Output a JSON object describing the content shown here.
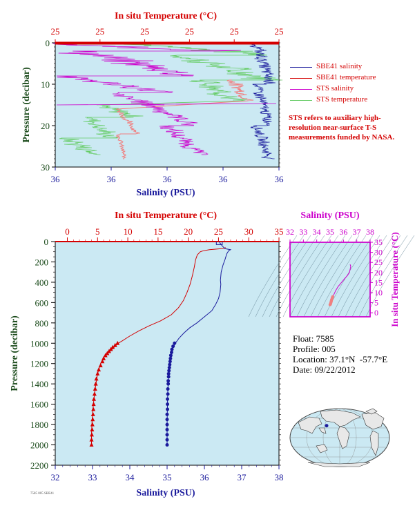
{
  "chart_data": [
    {
      "type": "line",
      "top_axis_label": "In situ Temperature (°C)",
      "top_tick_labels": [
        "25",
        "25",
        "25",
        "25",
        "25",
        "25"
      ],
      "xlabel": "Salinity (PSU)",
      "bottom_tick_labels": [
        "36",
        "36",
        "36",
        "36",
        "36"
      ],
      "ylabel": "Pressure (decibar)",
      "y_ticks": [
        0,
        10,
        20,
        30
      ],
      "ylim": [
        30,
        0
      ],
      "grid": false,
      "legend_position": "right",
      "series": [
        {
          "name": "SBE41 salinity",
          "color": "#1a1a9c"
        },
        {
          "name": "SBE41 temperature",
          "color": "#d40000"
        },
        {
          "name": "STS salinity",
          "color": "#cc00cc"
        },
        {
          "name": "STS temperature",
          "color": "#66cc66"
        }
      ],
      "note": "STS refers to auxiliary high-resolution near-surface T-S measurements funded by NASA."
    },
    {
      "type": "line",
      "top_axis_label": "In situ Temperature (°C)",
      "top_ticks": [
        0,
        5,
        10,
        15,
        20,
        25,
        30,
        35
      ],
      "xlabel": "Salinity (PSU)",
      "bottom_ticks": [
        32,
        33,
        34,
        35,
        36,
        37,
        38
      ],
      "ylabel": "Pressure (decibar)",
      "y_ticks": [
        0,
        200,
        400,
        600,
        800,
        1000,
        1200,
        1400,
        1600,
        1800,
        2000,
        2200
      ],
      "ylim": [
        2200,
        0
      ],
      "temperature_xlim": [
        -2,
        35
      ],
      "salinity_xlim": [
        32,
        38
      ],
      "series": [
        {
          "name": "temperature",
          "color": "#d40000",
          "marker": "triangle",
          "profile": [
            [
              26.2,
              60
            ],
            [
              25.8,
              65
            ],
            [
              25.5,
              70
            ],
            [
              24.5,
              75
            ],
            [
              23.5,
              80
            ],
            [
              22.5,
              90
            ],
            [
              22.0,
              100
            ],
            [
              21.5,
              130
            ],
            [
              21.2,
              180
            ],
            [
              21.0,
              250
            ],
            [
              20.7,
              330
            ],
            [
              20.3,
              420
            ],
            [
              19.8,
              500
            ],
            [
              19.2,
              580
            ],
            [
              18.4,
              650
            ],
            [
              17.2,
              720
            ],
            [
              15.4,
              780
            ],
            [
              13.5,
              830
            ],
            [
              11.8,
              880
            ],
            [
              10.3,
              930
            ],
            [
              9.0,
              980
            ],
            [
              8.4,
              1000
            ],
            [
              7.4,
              1060
            ],
            [
              6.6,
              1100
            ],
            [
              6.0,
              1140
            ],
            [
              5.5,
              1200
            ],
            [
              5.0,
              1300
            ],
            [
              4.6,
              1450
            ],
            [
              4.3,
              1600
            ],
            [
              4.1,
              1750
            ],
            [
              4.0,
              1900
            ],
            [
              4.0,
              2000
            ]
          ],
          "samples": [
            [
              8.3,
              1000
            ],
            [
              7.9,
              1020
            ],
            [
              7.5,
              1040
            ],
            [
              7.2,
              1060
            ],
            [
              6.9,
              1080
            ],
            [
              6.6,
              1100
            ],
            [
              6.3,
              1120
            ],
            [
              6.0,
              1150
            ],
            [
              5.8,
              1180
            ],
            [
              5.5,
              1220
            ],
            [
              5.2,
              1260
            ],
            [
              5.0,
              1300
            ],
            [
              4.8,
              1350
            ],
            [
              4.7,
              1400
            ],
            [
              4.6,
              1450
            ],
            [
              4.5,
              1500
            ],
            [
              4.4,
              1550
            ],
            [
              4.35,
              1600
            ],
            [
              4.3,
              1650
            ],
            [
              4.25,
              1700
            ],
            [
              4.2,
              1750
            ],
            [
              4.15,
              1800
            ],
            [
              4.1,
              1850
            ],
            [
              4.05,
              1900
            ],
            [
              4.0,
              1950
            ],
            [
              4.0,
              2000
            ]
          ]
        },
        {
          "name": "salinity",
          "color": "#1a1a9c",
          "marker": "circle",
          "profile": [
            [
              36.4,
              0
            ],
            [
              36.42,
              15
            ],
            [
              36.45,
              30
            ],
            [
              36.5,
              50
            ],
            [
              36.55,
              70
            ],
            [
              36.7,
              80
            ],
            [
              36.65,
              90
            ],
            [
              36.6,
              120
            ],
            [
              36.55,
              180
            ],
            [
              36.5,
              230
            ],
            [
              36.45,
              300
            ],
            [
              36.43,
              380
            ],
            [
              36.44,
              420
            ],
            [
              36.42,
              500
            ],
            [
              36.38,
              560
            ],
            [
              36.3,
              620
            ],
            [
              36.2,
              680
            ],
            [
              36.0,
              740
            ],
            [
              35.8,
              800
            ],
            [
              35.6,
              850
            ],
            [
              35.45,
              900
            ],
            [
              35.32,
              950
            ],
            [
              35.22,
              1000
            ],
            [
              35.15,
              1050
            ],
            [
              35.12,
              1100
            ],
            [
              35.1,
              1150
            ],
            [
              35.08,
              1200
            ],
            [
              35.06,
              1260
            ],
            [
              35.04,
              1330
            ],
            [
              35.02,
              1450
            ],
            [
              35.01,
              1600
            ],
            [
              35.0,
              1800
            ],
            [
              35.0,
              2000
            ]
          ],
          "samples": [
            [
              35.2,
              1000
            ],
            [
              35.16,
              1030
            ],
            [
              35.13,
              1060
            ],
            [
              35.12,
              1090
            ],
            [
              35.1,
              1120
            ],
            [
              35.09,
              1150
            ],
            [
              35.08,
              1180
            ],
            [
              35.07,
              1210
            ],
            [
              35.06,
              1240
            ],
            [
              35.05,
              1270
            ],
            [
              35.04,
              1300
            ],
            [
              35.04,
              1330
            ],
            [
              35.03,
              1370
            ],
            [
              35.03,
              1400
            ],
            [
              35.02,
              1450
            ],
            [
              35.02,
              1500
            ],
            [
              35.01,
              1550
            ],
            [
              35.01,
              1600
            ],
            [
              35.01,
              1650
            ],
            [
              35.0,
              1700
            ],
            [
              35.0,
              1750
            ],
            [
              35.0,
              1800
            ],
            [
              35.0,
              1850
            ],
            [
              35.0,
              1900
            ],
            [
              35.0,
              1950
            ],
            [
              35.0,
              2000
            ]
          ]
        }
      ]
    },
    {
      "type": "scatter",
      "top_axis_label": "Salinity (PSU)",
      "top_ticks": [
        32,
        33,
        34,
        35,
        36,
        37,
        38
      ],
      "right_axis_label": "In situ Temperature (°C)",
      "right_ticks": [
        0,
        5,
        10,
        15,
        20,
        25,
        30,
        35
      ],
      "xlim": [
        32,
        38
      ],
      "ylim": [
        -2,
        35
      ],
      "ts_curve": [
        [
          35.02,
          4
        ],
        [
          35.06,
          5
        ],
        [
          35.15,
          7
        ],
        [
          35.28,
          9
        ],
        [
          35.42,
          11
        ],
        [
          35.6,
          13
        ],
        [
          35.85,
          15
        ],
        [
          36.1,
          17
        ],
        [
          36.3,
          18.5
        ],
        [
          36.45,
          20
        ],
        [
          36.5,
          21.5
        ],
        [
          36.55,
          23
        ],
        [
          36.5,
          24
        ]
      ],
      "ts_points": [
        [
          35.0,
          4.0
        ],
        [
          35.02,
          4.2
        ],
        [
          35.04,
          4.5
        ],
        [
          35.06,
          5.0
        ],
        [
          35.08,
          5.5
        ],
        [
          35.1,
          6.0
        ],
        [
          35.12,
          6.6
        ],
        [
          35.16,
          7.3
        ],
        [
          35.2,
          8.0
        ]
      ]
    }
  ],
  "info": {
    "float_label": "Float:",
    "float_value": "7585",
    "profile_label": "Profile:",
    "profile_value": "005",
    "location_label": "Location:",
    "location_value": "37.1°N  -57.7°E",
    "date_label": "Date:",
    "date_value": "09/22/2012"
  },
  "map": {
    "marker_lat": 37.1,
    "marker_lon": -57.7
  },
  "footer_text": "7585 005 SBE41"
}
